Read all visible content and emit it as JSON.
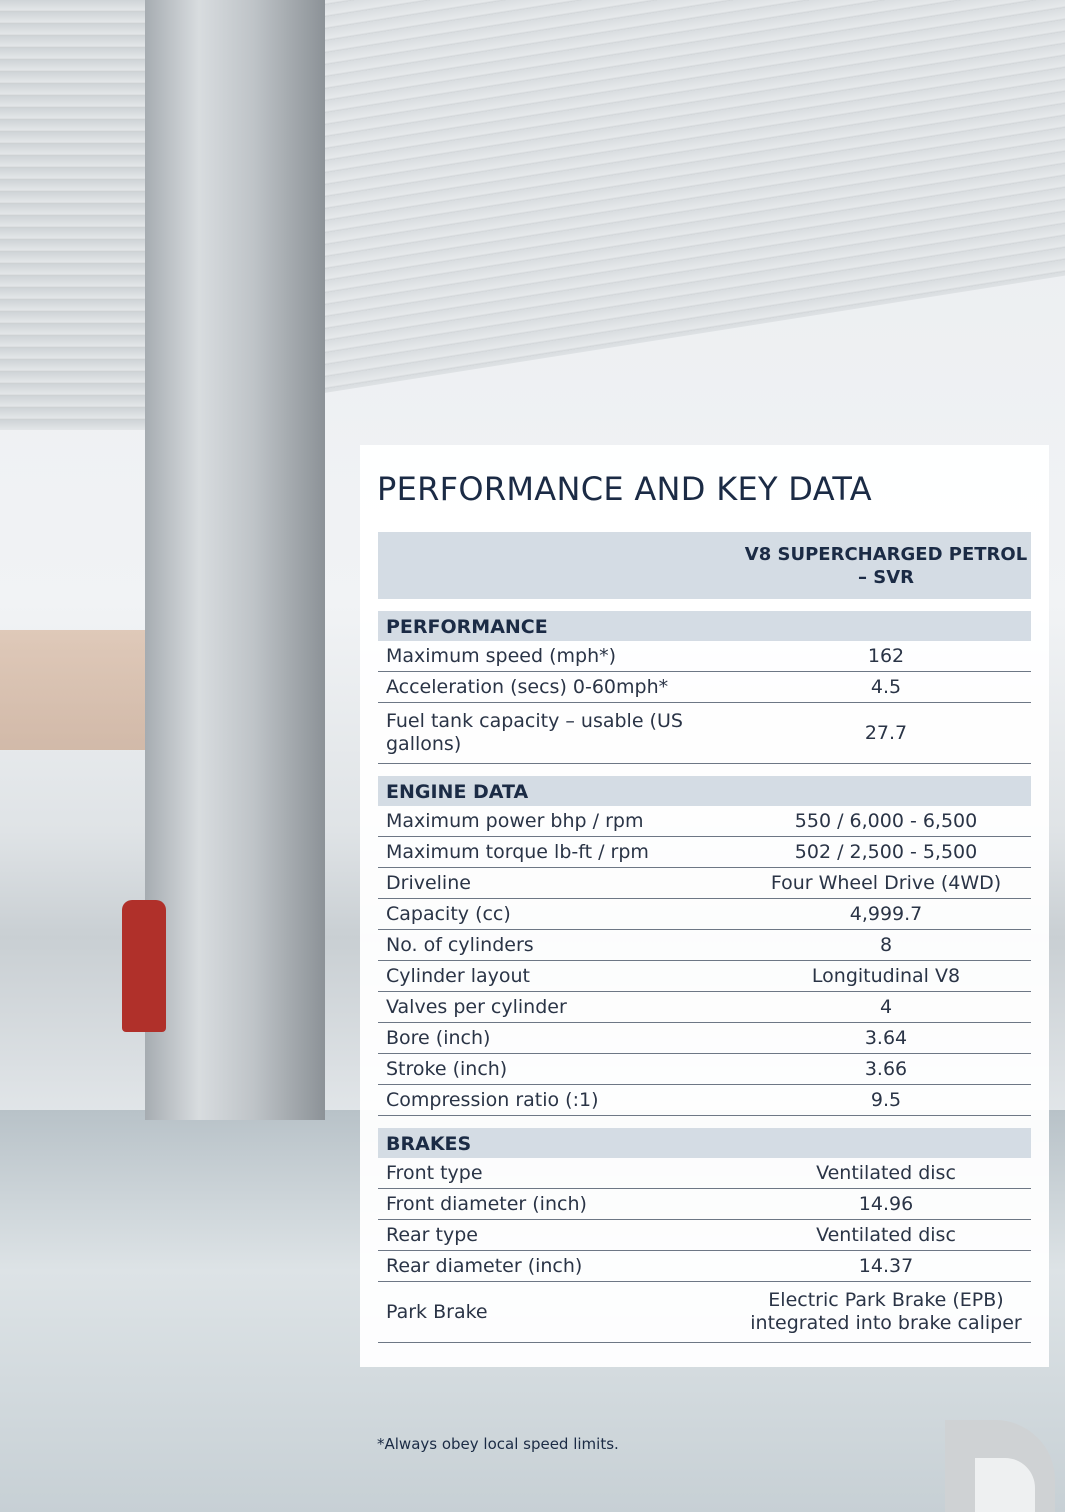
{
  "title": "PERFORMANCE AND KEY DATA",
  "table": {
    "column_header": "V8 SUPERCHARGED PETROL – SVR",
    "sections": [
      {
        "name": "PERFORMANCE",
        "rows": [
          [
            "Maximum speed (mph*)",
            "162"
          ],
          [
            "Acceleration (secs) 0-60mph*",
            "4.5"
          ],
          [
            "Fuel tank capacity – usable (US gallons)",
            "27.7"
          ]
        ]
      },
      {
        "name": "ENGINE DATA",
        "rows": [
          [
            "Maximum power bhp / rpm",
            "550 / 6,000 - 6,500"
          ],
          [
            "Maximum torque lb-ft / rpm",
            "502 / 2,500 - 5,500"
          ],
          [
            "Driveline",
            "Four Wheel Drive (4WD)"
          ],
          [
            "Capacity (cc)",
            "4,999.7"
          ],
          [
            "No. of cylinders",
            "8"
          ],
          [
            "Cylinder layout",
            "Longitudinal V8"
          ],
          [
            "Valves per cylinder",
            "4"
          ],
          [
            "Bore (inch)",
            "3.64"
          ],
          [
            "Stroke (inch)",
            "3.66"
          ],
          [
            "Compression ratio (:1)",
            "9.5"
          ]
        ]
      },
      {
        "name": "BRAKES",
        "rows": [
          [
            "Front type",
            "Ventilated disc"
          ],
          [
            "Front diameter (inch)",
            "14.96"
          ],
          [
            "Rear type",
            "Ventilated disc"
          ],
          [
            "Rear diameter (inch)",
            "14.37"
          ],
          [
            "Park Brake",
            "Electric Park Brake (EPB) integrated into brake caliper"
          ]
        ]
      }
    ]
  },
  "footnote": "*Always obey local speed limits."
}
